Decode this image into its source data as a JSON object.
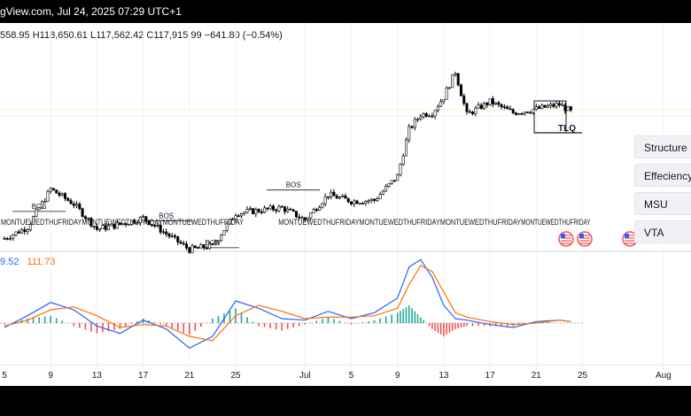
{
  "header": {
    "source_text": "gView.com, Jul 24, 2025 07:29 UTC+1"
  },
  "ohlc": {
    "open_value": "558.95",
    "high_label": "H",
    "high_value": "118,650.61",
    "low_label": "L",
    "low_value": "117,562.42",
    "close_label": "C",
    "close_value": "117,915.99",
    "change": "−641.80 (−0.54%)"
  },
  "indicator_buttons": [
    {
      "label": "Structure"
    },
    {
      "label": "Effeciency"
    },
    {
      "label": "MSU"
    },
    {
      "label": "VTA"
    }
  ],
  "macd_values": {
    "macd": "9.52",
    "signal": "111.73",
    "macd_color": "#2962ff",
    "signal_color": "#ff6d00"
  },
  "annotations": {
    "bos": "BOS",
    "ltq": "TLQ",
    "weekday_strip": "MONTUEWEDTHUFRIDAY"
  },
  "colors": {
    "candle": "#000000",
    "hist_up": "#26a69a",
    "hist_down": "#ef5350",
    "background": "#ffffff"
  },
  "chart_data": {
    "type": "line",
    "title": "",
    "x_ticks": [
      "5",
      "9",
      "13",
      "17",
      "21",
      "25",
      "Jul",
      "5",
      "9",
      "13",
      "17",
      "21",
      "25",
      "Aug"
    ],
    "price_series": {
      "name": "",
      "x": [
        "Jun 5",
        "Jun 7",
        "Jun 9",
        "Jun 11",
        "Jun 13",
        "Jun 15",
        "Jun 17",
        "Jun 19",
        "Jun 21",
        "Jun 23",
        "Jun 25",
        "Jun 27",
        "Jun 29",
        "Jul 1",
        "Jul 3",
        "Jul 5",
        "Jul 7",
        "Jul 9",
        "Jul 10",
        "Jul 11",
        "Jul 12",
        "Jul 13",
        "Jul 14",
        "Jul 15",
        "Jul 17",
        "Jul 19",
        "Jul 21",
        "Jul 23",
        "Jul 24"
      ],
      "values": [
        104300,
        105500,
        109600,
        108000,
        105300,
        105800,
        106500,
        104800,
        103100,
        103500,
        107000,
        107300,
        107600,
        106300,
        109000,
        108300,
        108400,
        111000,
        116000,
        117600,
        117800,
        119500,
        122200,
        117600,
        119000,
        117800,
        118200,
        118700,
        117900
      ]
    },
    "macd": {
      "macd_line": [
        -300,
        500,
        1400,
        900,
        -200,
        -700,
        200,
        -400,
        -1700,
        -900,
        1500,
        1000,
        300,
        200,
        800,
        300,
        700,
        1700,
        3800,
        4300,
        3100,
        1200,
        300,
        200,
        -100,
        -300,
        100,
        200,
        100
      ],
      "signal_line": [
        -200,
        200,
        900,
        1100,
        500,
        -300,
        -100,
        -200,
        -900,
        -1200,
        500,
        1200,
        800,
        300,
        400,
        400,
        500,
        1000,
        2600,
        3900,
        3500,
        2100,
        700,
        400,
        100,
        -100,
        0,
        200,
        100
      ],
      "histogram": [
        -100,
        300,
        500,
        -200,
        -700,
        -400,
        300,
        -200,
        -800,
        300,
        1000,
        -200,
        -500,
        -100,
        400,
        -100,
        200,
        700,
        1200,
        400,
        -400,
        -900,
        -400,
        -200,
        -200,
        -200,
        100,
        0,
        0
      ]
    }
  }
}
